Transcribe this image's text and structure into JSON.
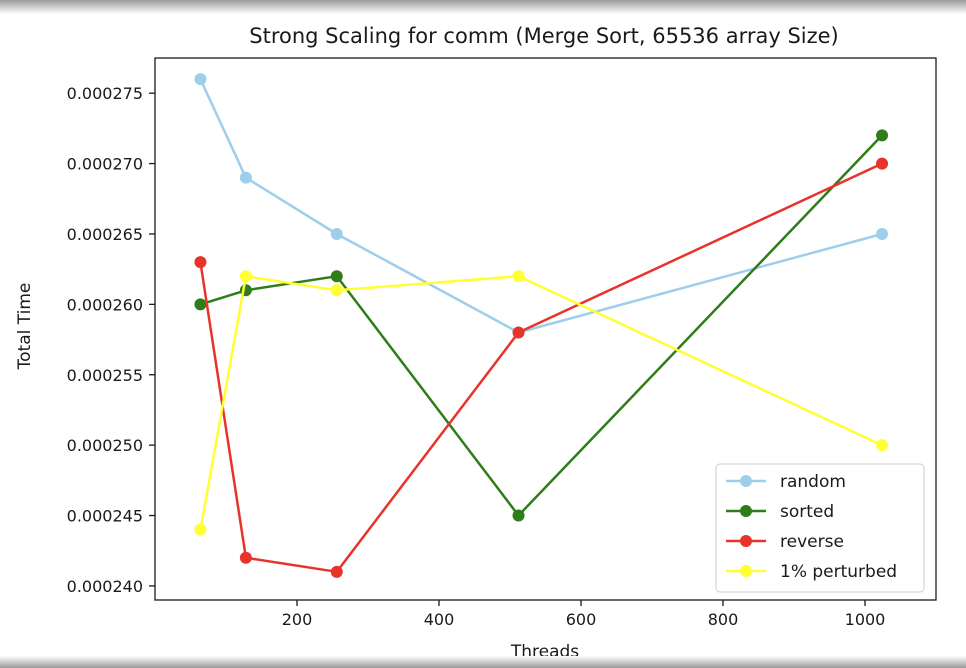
{
  "chart_data": {
    "type": "line",
    "title": "Strong Scaling for comm (Merge Sort, 65536 array Size)",
    "xlabel": "Threads",
    "ylabel": "Total Time",
    "xlim": [
      0,
      1100
    ],
    "ylim": [
      0.000239,
      0.0002775
    ],
    "xticks": [
      200,
      400,
      600,
      800,
      1000
    ],
    "yticks": [
      0.00024,
      0.000245,
      0.00025,
      0.000255,
      0.00026,
      0.000265,
      0.00027,
      0.000275
    ],
    "xtick_labels": [
      "200",
      "400",
      "600",
      "800",
      "1000"
    ],
    "ytick_labels": [
      "0.000240",
      "0.000245",
      "0.000250",
      "0.000255",
      "0.000260",
      "0.000265",
      "0.000270",
      "0.000275"
    ],
    "grid": false,
    "legend_position": "lower-right",
    "x": [
      64,
      128,
      256,
      512,
      1024
    ],
    "series": [
      {
        "name": "random",
        "color": "#9ecfea",
        "values": [
          0.000276,
          0.000269,
          0.000265,
          0.000258,
          0.000265
        ]
      },
      {
        "name": "sorted",
        "color": "#2e7d1a",
        "values": [
          0.00026,
          0.000261,
          0.000262,
          0.000245,
          0.000272
        ]
      },
      {
        "name": "reverse",
        "color": "#e8332a",
        "values": [
          0.000263,
          0.000242,
          0.000241,
          0.000258,
          0.00027
        ]
      },
      {
        "name": "1% perturbed",
        "color": "#ffff33",
        "values": [
          0.000244,
          0.000262,
          0.000261,
          0.000262,
          0.00025
        ]
      }
    ]
  }
}
